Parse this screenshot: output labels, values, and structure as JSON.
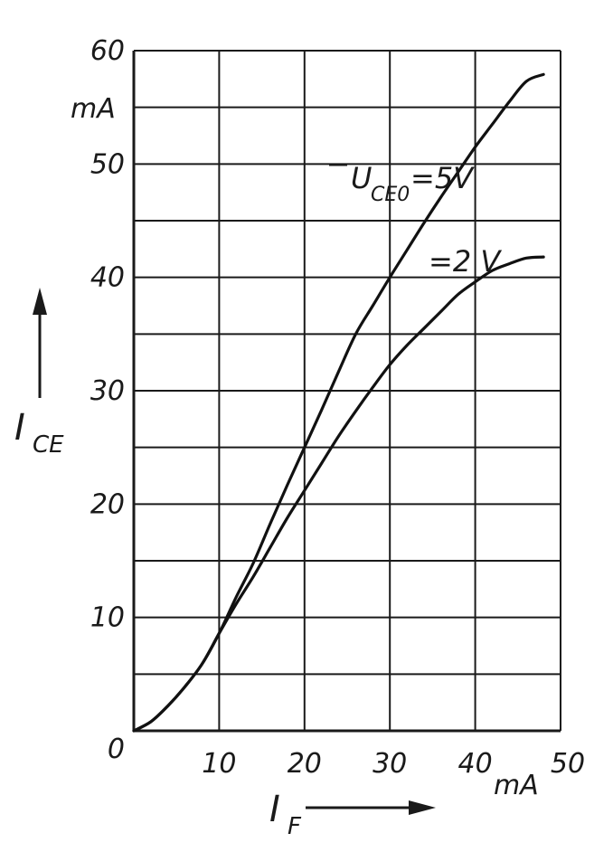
{
  "chart_data": {
    "type": "line",
    "title": "",
    "xlabel": {
      "main": "I",
      "sub": "F"
    },
    "ylabel": {
      "main": "I",
      "sub": "CE"
    },
    "x_unit": "mA",
    "y_unit": "mA",
    "xlim": [
      0,
      50
    ],
    "ylim": [
      0,
      60
    ],
    "x_ticks": [
      0,
      10,
      20,
      30,
      40,
      50
    ],
    "y_ticks": [
      0,
      10,
      20,
      30,
      40,
      50,
      60
    ],
    "x_tick_labels": [
      "10",
      "20",
      "30",
      "40",
      "50"
    ],
    "y_tick_labels": [
      "0",
      "10",
      "20",
      "30",
      "40",
      "50",
      "60"
    ],
    "grid": true,
    "series": [
      {
        "name": "U_CE0 = 5 V",
        "label_parts": {
          "main": "U",
          "sub": "CE0",
          "rest": "=5V"
        },
        "x": [
          0,
          2,
          4,
          6,
          8,
          10,
          12,
          14,
          16,
          18,
          20,
          22,
          24,
          26,
          28,
          30,
          32,
          34,
          36,
          38,
          40,
          42,
          44,
          46,
          48
        ],
        "y": [
          0,
          0.8,
          2.2,
          3.9,
          5.9,
          8.6,
          11.8,
          14.8,
          18.3,
          21.7,
          25.0,
          28.3,
          31.7,
          35.0,
          37.5,
          40.0,
          42.4,
          44.8,
          47.1,
          49.3,
          51.5,
          53.5,
          55.5,
          57.3,
          57.9
        ]
      },
      {
        "name": "= 2 V",
        "label_parts": {
          "main": "=2 V",
          "sub": "",
          "rest": ""
        },
        "x": [
          0,
          2,
          4,
          6,
          8,
          10,
          12,
          14,
          16,
          18,
          20,
          22,
          24,
          26,
          28,
          30,
          32,
          34,
          36,
          38,
          40,
          42,
          44,
          46,
          48
        ],
        "y": [
          0,
          0.8,
          2.2,
          3.9,
          5.9,
          8.6,
          11.2,
          13.6,
          16.2,
          18.8,
          21.2,
          23.6,
          26.0,
          28.2,
          30.3,
          32.3,
          34.0,
          35.5,
          37.0,
          38.5,
          39.6,
          40.6,
          41.2,
          41.7,
          41.8
        ]
      }
    ]
  }
}
